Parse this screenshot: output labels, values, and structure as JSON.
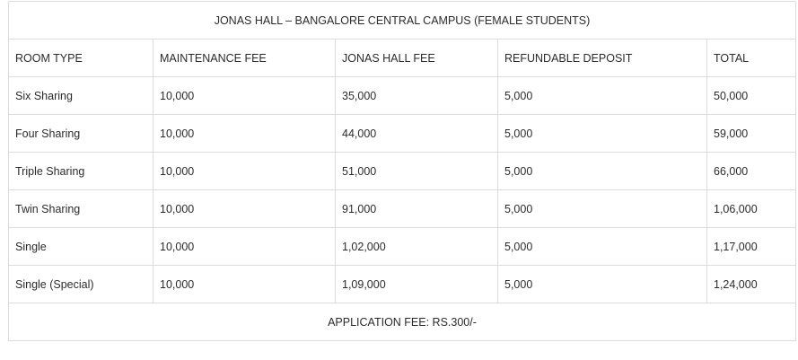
{
  "table": {
    "title": "JONAS HALL – BANGALORE CENTRAL CAMPUS (FEMALE STUDENTS)",
    "headers": [
      "ROOM TYPE",
      "MAINTENANCE FEE",
      "JONAS HALL FEE",
      "REFUNDABLE DEPOSIT",
      "TOTAL"
    ],
    "rows": [
      [
        "Six Sharing",
        "10,000",
        "35,000",
        "5,000",
        "50,000"
      ],
      [
        "Four Sharing",
        "10,000",
        "44,000",
        "5,000",
        "59,000"
      ],
      [
        "Triple Sharing",
        "10,000",
        "51,000",
        "5,000",
        "66,000"
      ],
      [
        "Twin Sharing",
        "10,000",
        "91,000",
        "5,000",
        "1,06,000"
      ],
      [
        "Single",
        "10,000",
        "1,02,000",
        "5,000",
        "1,17,000"
      ],
      [
        "Single (Special)",
        "10,000",
        "1,09,000",
        "5,000",
        "1,24,000"
      ]
    ],
    "footer": "APPLICATION FEE: RS.300/-"
  }
}
